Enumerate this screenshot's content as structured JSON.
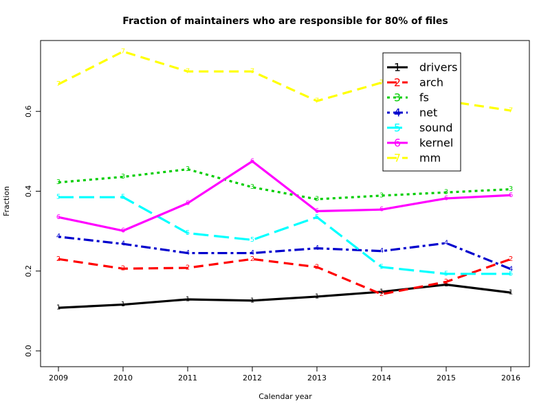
{
  "chart_data": {
    "type": "line",
    "title": "Fraction of maintainers who are responsible for 80% of files",
    "xlabel": "Calendar year",
    "ylabel": "Fraction",
    "x": [
      2009,
      2010,
      2011,
      2012,
      2013,
      2014,
      2015,
      2016
    ],
    "xlim": [
      2009,
      2016
    ],
    "ylim": [
      0.0,
      0.75
    ],
    "yticks": [
      0.0,
      0.2,
      0.4,
      0.6
    ],
    "ytick_labels": [
      "0.0",
      "0.2",
      "0.4",
      "0.6"
    ],
    "grid": false,
    "legend_position": "top-right",
    "series": [
      {
        "name": "drivers",
        "marker": "1",
        "color": "#000000",
        "dash": "solid",
        "values": [
          0.108,
          0.116,
          0.129,
          0.126,
          0.136,
          0.148,
          0.166,
          0.146
        ]
      },
      {
        "name": "arch",
        "marker": "2",
        "color": "#FF0000",
        "dash": "dashed",
        "values": [
          0.23,
          0.206,
          0.208,
          0.23,
          0.21,
          0.142,
          0.173,
          0.23
        ]
      },
      {
        "name": "fs",
        "marker": "3",
        "color": "#00CD00",
        "dash": "dotted",
        "values": [
          0.422,
          0.436,
          0.455,
          0.41,
          0.38,
          0.389,
          0.397,
          0.405
        ]
      },
      {
        "name": "net",
        "marker": "4",
        "color": "#0000CD",
        "dash": "dotdash",
        "values": [
          0.286,
          0.268,
          0.245,
          0.245,
          0.257,
          0.25,
          0.27,
          0.205
        ]
      },
      {
        "name": "sound",
        "marker": "5",
        "color": "#00FFFF",
        "dash": "longdash",
        "values": [
          0.385,
          0.385,
          0.295,
          0.278,
          0.335,
          0.21,
          0.193,
          0.193
        ]
      },
      {
        "name": "kernel",
        "marker": "6",
        "color": "#FF00FF",
        "dash": "solid",
        "values": [
          0.335,
          0.301,
          0.37,
          0.475,
          0.35,
          0.354,
          0.382,
          0.39
        ]
      },
      {
        "name": "mm",
        "marker": "7",
        "color": "#FFFF00",
        "dash": "dashed",
        "values": [
          0.668,
          0.75,
          0.7,
          0.7,
          0.626,
          0.672,
          0.626,
          0.602
        ]
      }
    ]
  }
}
